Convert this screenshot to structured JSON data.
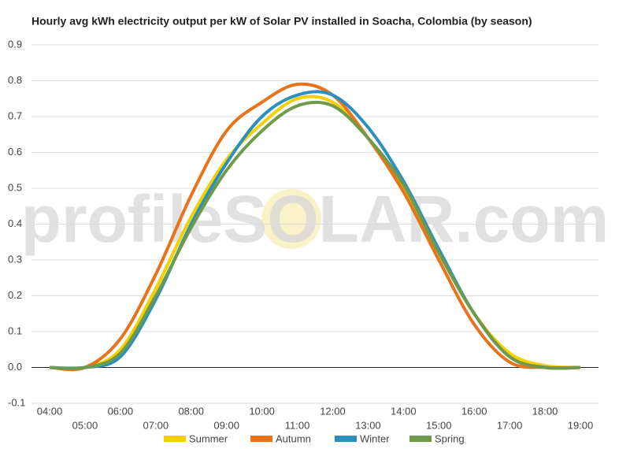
{
  "chart_data": {
    "type": "line",
    "title": "Hourly avg kWh electricity output per kW of Solar PV installed in Soacha, Colombia (by season)",
    "watermark": "profileSOLAR.com",
    "categories": [
      "04:00",
      "05:00",
      "06:00",
      "07:00",
      "08:00",
      "09:00",
      "10:00",
      "11:00",
      "12:00",
      "13:00",
      "14:00",
      "15:00",
      "16:00",
      "17:00",
      "18:00",
      "19:00"
    ],
    "series": [
      {
        "name": "Summer",
        "color": "#f5d000",
        "values": [
          0,
          0,
          0.05,
          0.22,
          0.42,
          0.58,
          0.68,
          0.75,
          0.74,
          0.64,
          0.5,
          0.32,
          0.15,
          0.04,
          0.005,
          0
        ]
      },
      {
        "name": "Autumn",
        "color": "#e8731a",
        "values": [
          0,
          0,
          0.08,
          0.26,
          0.48,
          0.66,
          0.74,
          0.79,
          0.76,
          0.64,
          0.49,
          0.3,
          0.12,
          0.015,
          0,
          0
        ]
      },
      {
        "name": "Winter",
        "color": "#2b90c0",
        "values": [
          0,
          0,
          0.03,
          0.19,
          0.4,
          0.57,
          0.7,
          0.76,
          0.76,
          0.67,
          0.52,
          0.33,
          0.15,
          0.03,
          0,
          0
        ]
      },
      {
        "name": "Spring",
        "color": "#6f9a4a",
        "values": [
          0,
          0,
          0.04,
          0.2,
          0.39,
          0.55,
          0.66,
          0.73,
          0.73,
          0.64,
          0.51,
          0.32,
          0.15,
          0.03,
          0,
          0
        ]
      }
    ],
    "ylim": [
      -0.1,
      0.9
    ],
    "yticks": [
      -0.1,
      {
        "value": 0,
        "label": "0.0"
      },
      0.1,
      0.2,
      0.3,
      0.4,
      0.5,
      0.6,
      0.7,
      0.8,
      0.9
    ],
    "grid": true,
    "legend": "bottom"
  }
}
